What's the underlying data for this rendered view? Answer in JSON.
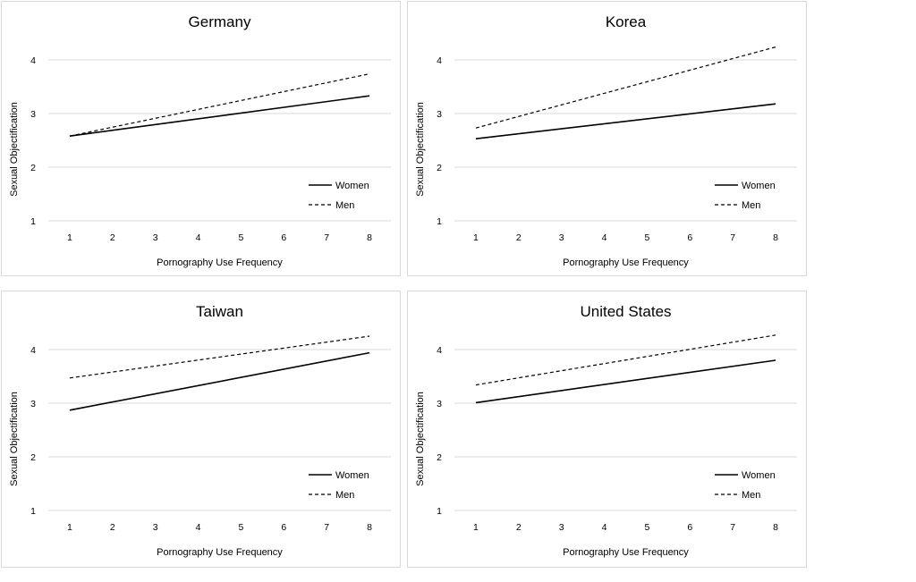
{
  "chart_data": [
    {
      "type": "line",
      "title": "Germany",
      "xlabel": "Pornography Use Frequency",
      "ylabel": "Sexual Objectification",
      "x": [
        1,
        2,
        3,
        4,
        5,
        6,
        7,
        8
      ],
      "yticks": [
        1,
        2,
        3,
        4
      ],
      "ylim": [
        1,
        4.5
      ],
      "grid": "horizontal",
      "legend_position": "bottom-right",
      "series": [
        {
          "name": "Women",
          "style": "solid",
          "endpoints": [
            [
              1,
              2.58
            ],
            [
              8,
              3.33
            ]
          ]
        },
        {
          "name": "Men",
          "style": "dashed",
          "endpoints": [
            [
              1,
              2.58
            ],
            [
              8,
              3.74
            ]
          ]
        }
      ]
    },
    {
      "type": "line",
      "title": "Korea",
      "xlabel": "Pornography Use Frequency",
      "ylabel": "Sexual Objectification",
      "x": [
        1,
        2,
        3,
        4,
        5,
        6,
        7,
        8
      ],
      "yticks": [
        1,
        2,
        3,
        4
      ],
      "ylim": [
        1,
        4.5
      ],
      "grid": "horizontal",
      "legend_position": "bottom-right",
      "series": [
        {
          "name": "Women",
          "style": "solid",
          "endpoints": [
            [
              1,
              2.53
            ],
            [
              8,
              3.18
            ]
          ]
        },
        {
          "name": "Men",
          "style": "dashed",
          "endpoints": [
            [
              1,
              2.73
            ],
            [
              8,
              4.24
            ]
          ]
        }
      ]
    },
    {
      "type": "line",
      "title": "Taiwan",
      "xlabel": "Pornography Use Frequency",
      "ylabel": "Sexual Objectification",
      "x": [
        1,
        2,
        3,
        4,
        5,
        6,
        7,
        8
      ],
      "yticks": [
        1,
        2,
        3,
        4
      ],
      "ylim": [
        1,
        4.5
      ],
      "grid": "horizontal",
      "legend_position": "bottom-right",
      "series": [
        {
          "name": "Women",
          "style": "solid",
          "endpoints": [
            [
              1,
              2.87
            ],
            [
              8,
              3.94
            ]
          ]
        },
        {
          "name": "Men",
          "style": "dashed",
          "endpoints": [
            [
              1,
              3.47
            ],
            [
              8,
              4.25
            ]
          ]
        }
      ]
    },
    {
      "type": "line",
      "title": "United States",
      "xlabel": "Pornography Use Frequency",
      "ylabel": "Sexual Objectification",
      "x": [
        1,
        2,
        3,
        4,
        5,
        6,
        7,
        8
      ],
      "yticks": [
        1,
        2,
        3,
        4
      ],
      "ylim": [
        1,
        4.5
      ],
      "grid": "horizontal",
      "legend_position": "bottom-right",
      "series": [
        {
          "name": "Women",
          "style": "solid",
          "endpoints": [
            [
              1,
              3.01
            ],
            [
              8,
              3.8
            ]
          ]
        },
        {
          "name": "Men",
          "style": "dashed",
          "endpoints": [
            [
              1,
              3.34
            ],
            [
              8,
              4.27
            ]
          ]
        }
      ]
    }
  ],
  "colors": {
    "line": "#000000",
    "grid": "#d9d9d9",
    "border": "#d9d9d9"
  }
}
